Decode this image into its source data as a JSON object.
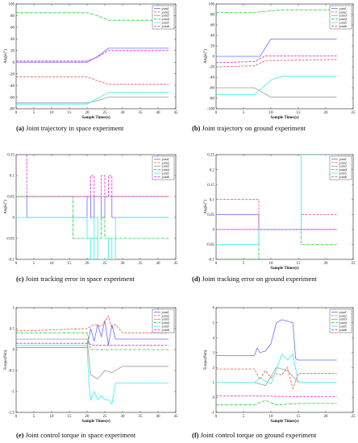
{
  "colors": {
    "joint1": "#6b6bff",
    "joint2": "#e8584a",
    "joint3": "#9a9a9a",
    "joint4": "#14c814",
    "joint5": "#33f0f0",
    "joint6": "#e020d8"
  },
  "chart_data": [
    {
      "type": "line",
      "caption": {
        "letter": "(a)",
        "text": " Joint trajectory in space experiment"
      },
      "xlabel": "Sample Times(s)",
      "ylabel": "Angle(°)",
      "xlim": [
        0,
        45
      ],
      "ylim": [
        -80,
        100
      ],
      "xticks": [
        0,
        5,
        10,
        15,
        20,
        25,
        30,
        35,
        40,
        45
      ],
      "yticks": [
        -80,
        -60,
        -40,
        -20,
        0,
        20,
        40,
        60,
        80,
        100
      ],
      "legend": {
        "position": "top-right",
        "entries": [
          "joint1",
          "joint2",
          "joint3",
          "joint4",
          "joint5",
          "joint6"
        ]
      },
      "series": [
        {
          "name": "joint1",
          "style": "solid",
          "x": [
            0,
            20,
            23,
            26,
            43
          ],
          "y": [
            0,
            0,
            10,
            24,
            24
          ]
        },
        {
          "name": "joint2",
          "style": "dashed",
          "x": [
            0,
            20,
            23,
            26,
            43
          ],
          "y": [
            -25,
            -25,
            -32,
            -38,
            -38
          ]
        },
        {
          "name": "joint3",
          "style": "solid",
          "x": [
            0,
            20,
            23,
            26,
            43
          ],
          "y": [
            -70,
            -70,
            -66,
            -60,
            -60
          ]
        },
        {
          "name": "joint4",
          "style": "dashdot",
          "x": [
            0,
            20,
            23,
            26,
            43
          ],
          "y": [
            85,
            85,
            80,
            72,
            72
          ]
        },
        {
          "name": "joint5",
          "style": "solid",
          "x": [
            0,
            20,
            23,
            26,
            43
          ],
          "y": [
            -72,
            -72,
            -62,
            -52,
            -52
          ]
        },
        {
          "name": "joint6",
          "style": "dashed",
          "x": [
            0,
            20,
            23,
            26,
            43
          ],
          "y": [
            2,
            2,
            9,
            20,
            20
          ]
        }
      ]
    },
    {
      "type": "line",
      "caption": {
        "letter": "(b)",
        "text": " Joint trajectory on ground experiment"
      },
      "xlabel": "Sample Times(s)",
      "ylabel": "Angle(°)",
      "xlim": [
        0,
        25
      ],
      "ylim": [
        -100,
        100
      ],
      "xticks": [
        0,
        5,
        10,
        15,
        20,
        25
      ],
      "yticks": [
        -100,
        -80,
        -60,
        -40,
        -20,
        0,
        20,
        40,
        60,
        80,
        100
      ],
      "legend": {
        "position": "top-right",
        "entries": [
          "joint1",
          "joint2",
          "joint3",
          "joint4",
          "joint5",
          "joint6"
        ]
      },
      "series": [
        {
          "name": "joint1",
          "style": "solid",
          "x": [
            0,
            8,
            10,
            22
          ],
          "y": [
            0,
            0,
            33,
            33
          ]
        },
        {
          "name": "joint2",
          "style": "dashed",
          "x": [
            0,
            7,
            9,
            22
          ],
          "y": [
            -20,
            -18,
            -8,
            -6
          ]
        },
        {
          "name": "joint3",
          "style": "solid",
          "x": [
            0,
            7,
            10,
            22
          ],
          "y": [
            -60,
            -60,
            -78,
            -78
          ]
        },
        {
          "name": "joint4",
          "style": "dashdot",
          "x": [
            0,
            7,
            12,
            22
          ],
          "y": [
            84,
            84,
            89,
            89
          ]
        },
        {
          "name": "joint5",
          "style": "solid",
          "x": [
            0,
            7,
            10,
            12,
            22
          ],
          "y": [
            -73,
            -73,
            -45,
            -38,
            -38
          ]
        },
        {
          "name": "joint6",
          "style": "dashed",
          "x": [
            0,
            7,
            9,
            22
          ],
          "y": [
            -12,
            -10,
            1,
            1
          ]
        }
      ]
    },
    {
      "type": "line",
      "caption": {
        "letter": "(c)",
        "text": " Joint tracking error in space experiment"
      },
      "xlabel": "",
      "ylabel": "Angle(°)",
      "xlim": [
        0,
        45
      ],
      "ylim": [
        -0.1,
        0.15
      ],
      "xticks": [
        0,
        5,
        10,
        15,
        20,
        25,
        30,
        35,
        40,
        45
      ],
      "yticks": [
        -0.1,
        -0.05,
        0,
        0.05,
        0.1,
        0.15
      ],
      "legend": {
        "position": "top-right",
        "entries": [
          "joint1",
          "joint2",
          "joint3",
          "joint4",
          "joint5",
          "joint6"
        ]
      },
      "series": [
        {
          "name": "joint1",
          "style": "solid",
          "x": [
            0,
            3,
            3,
            20,
            20,
            21,
            21,
            22,
            22,
            24,
            24,
            25,
            25,
            27,
            27,
            43
          ],
          "y": [
            0.05,
            0.05,
            0,
            0,
            0.05,
            0.05,
            0,
            0,
            0.05,
            0.05,
            0,
            0,
            0.05,
            0.05,
            0,
            0
          ]
        },
        {
          "name": "joint2",
          "style": "dashed",
          "x": [
            0,
            22,
            22,
            27,
            27,
            43
          ],
          "y": [
            0.05,
            0.05,
            0.05,
            0.05,
            0.05,
            0.05
          ]
        },
        {
          "name": "joint3",
          "style": "solid",
          "x": [
            0,
            20,
            20,
            43
          ],
          "y": [
            0.05,
            0.05,
            0.05,
            0.05
          ]
        },
        {
          "name": "joint4",
          "style": "dashdot",
          "x": [
            0,
            16,
            16,
            24,
            24,
            25,
            25,
            26,
            26,
            43
          ],
          "y": [
            0.05,
            0.05,
            -0.05,
            -0.05,
            0,
            0,
            -0.05,
            -0.05,
            -0.05,
            -0.05
          ]
        },
        {
          "name": "joint5",
          "style": "solid",
          "x": [
            0,
            20,
            20,
            21,
            21,
            22,
            22,
            23,
            23,
            26,
            26,
            27,
            27,
            28,
            28,
            43
          ],
          "y": [
            0,
            0,
            -0.05,
            -0.05,
            -0.1,
            -0.1,
            0,
            0,
            -0.1,
            -0.1,
            -0.05,
            -0.05,
            -0.1,
            -0.1,
            0,
            0
          ]
        },
        {
          "name": "joint6",
          "style": "dashed",
          "x": [
            0,
            3,
            3,
            21,
            21,
            22,
            22,
            24,
            24,
            25,
            25,
            26,
            26,
            27,
            27,
            43
          ],
          "y": [
            0.15,
            0.15,
            0.05,
            0.05,
            0.1,
            0.1,
            0.05,
            0.05,
            0.1,
            0.1,
            0.05,
            0.05,
            0.1,
            0.1,
            0.05,
            0.05
          ]
        }
      ]
    },
    {
      "type": "line",
      "caption": {
        "letter": "(d)",
        "text": " Joint tracking error on ground experiment"
      },
      "xlabel": "Sample Times(s)",
      "ylabel": "Angle(°)",
      "xlim": [
        0,
        25
      ],
      "ylim": [
        -0.1,
        0.25
      ],
      "xticks": [
        0,
        5,
        10,
        15,
        20,
        25
      ],
      "yticks": [
        -0.1,
        -0.05,
        0,
        0.05,
        0.1,
        0.15,
        0.2,
        0.25
      ],
      "legend": {
        "position": "top-right",
        "entries": [
          "joint1",
          "joint2",
          "joint3",
          "joint4",
          "joint5",
          "joint6"
        ]
      },
      "series": [
        {
          "name": "joint1",
          "style": "solid",
          "x": [
            0,
            7.8,
            7.8,
            22
          ],
          "y": [
            0.05,
            0.05,
            0,
            0
          ]
        },
        {
          "name": "joint2",
          "style": "dashed",
          "x": [
            0,
            7.8,
            7.8,
            15.5,
            15.5,
            22
          ],
          "y": [
            0.1,
            0.1,
            0,
            0,
            0.05,
            0.05
          ]
        },
        {
          "name": "joint3",
          "style": "solid",
          "x": [
            0,
            22
          ],
          "y": [
            0,
            0
          ]
        },
        {
          "name": "joint4",
          "style": "dashdot",
          "x": [
            0,
            7.8,
            7.8,
            15.5,
            15.5,
            22
          ],
          "y": [
            -0.1,
            -0.1,
            0,
            0,
            -0.05,
            -0.05
          ]
        },
        {
          "name": "joint5",
          "style": "solid",
          "x": [
            0,
            7.8,
            7.8,
            15.5,
            15.5,
            22
          ],
          "y": [
            -0.05,
            -0.05,
            0,
            0,
            0.25,
            0.25
          ]
        },
        {
          "name": "joint6",
          "style": "dashed",
          "x": [
            0,
            22
          ],
          "y": [
            0,
            0
          ]
        }
      ]
    },
    {
      "type": "line",
      "caption": {
        "letter": "(e)",
        "text": " Joint control torque in space experiment"
      },
      "xlabel": "Sample Times(s)",
      "ylabel": "Torque(Nm)",
      "xlim": [
        0,
        45
      ],
      "ylim": [
        -1.5,
        1
      ],
      "xticks": [
        0,
        5,
        10,
        15,
        20,
        25,
        30,
        35,
        40,
        45
      ],
      "yticks": [
        -1.5,
        -1,
        -0.5,
        0,
        0.5,
        1
      ],
      "legend": {
        "position": "top-right",
        "entries": [
          "joint1",
          "joint2",
          "joint3",
          "joint4",
          "joint5",
          "joint6"
        ]
      },
      "series": [
        {
          "name": "joint1",
          "style": "solid",
          "x": [
            0,
            3,
            20,
            21,
            22,
            23,
            24,
            25,
            26,
            27,
            28,
            30,
            43
          ],
          "y": [
            0.05,
            0.05,
            0.05,
            0.5,
            0.2,
            0.6,
            0.3,
            0.7,
            0.1,
            0.6,
            0.25,
            0.25,
            0.25
          ]
        },
        {
          "name": "joint2",
          "style": "dashed",
          "x": [
            0,
            3,
            20,
            22,
            24,
            26,
            27,
            28,
            30,
            43
          ],
          "y": [
            0.45,
            0.45,
            0.5,
            0.6,
            0.55,
            0.8,
            0.5,
            0.6,
            0.4,
            0.4
          ]
        },
        {
          "name": "joint3",
          "style": "solid",
          "x": [
            0,
            20,
            21,
            23,
            25,
            27,
            30,
            43
          ],
          "y": [
            0.25,
            0.25,
            -0.6,
            -0.7,
            -0.5,
            -0.55,
            -0.4,
            -0.4
          ]
        },
        {
          "name": "joint4",
          "style": "dashdot",
          "x": [
            0,
            3,
            20,
            21,
            22,
            43
          ],
          "y": [
            0.4,
            0.4,
            0.4,
            0,
            0,
            0
          ]
        },
        {
          "name": "joint5",
          "style": "solid",
          "x": [
            0,
            3,
            20,
            20.5,
            21,
            22,
            23,
            24,
            25,
            26,
            27,
            28,
            30,
            43
          ],
          "y": [
            0.1,
            0.1,
            0.1,
            -0.8,
            -1.2,
            -1.0,
            -1.2,
            -1.1,
            -1.2,
            -1.2,
            -1.3,
            -0.8,
            -0.8,
            -0.8
          ]
        },
        {
          "name": "joint6",
          "style": "dashed",
          "x": [
            0,
            3,
            20,
            22,
            25,
            27,
            30,
            43
          ],
          "y": [
            0.15,
            0.15,
            0.15,
            0.1,
            0.1,
            0.1,
            0.1,
            0.1
          ]
        }
      ]
    },
    {
      "type": "line",
      "caption": {
        "letter": "(f)",
        "text": " Joint control torque on ground experiment"
      },
      "xlabel": "Sample Times(s)",
      "ylabel": "Torque(Nm)",
      "xlim": [
        0,
        25
      ],
      "ylim": [
        -1,
        6
      ],
      "xticks": [
        0,
        5,
        10,
        15,
        20,
        25
      ],
      "yticks": [
        -1,
        0,
        1,
        2,
        3,
        4,
        5,
        6
      ],
      "legend": {
        "position": "top-right",
        "entries": [
          "joint1",
          "joint2",
          "joint3",
          "joint4",
          "joint5",
          "joint6"
        ]
      },
      "series": [
        {
          "name": "joint1",
          "style": "solid",
          "x": [
            0,
            7,
            7.5,
            8,
            9,
            10,
            11,
            12,
            13,
            14,
            14.5,
            15,
            22
          ],
          "y": [
            2.8,
            2.8,
            3.3,
            3.0,
            3.1,
            3.6,
            5.0,
            5.2,
            5.1,
            5.0,
            2.6,
            2.5,
            2.5
          ]
        },
        {
          "name": "joint2",
          "style": "dashed",
          "x": [
            0,
            7,
            8,
            9,
            10,
            11,
            12,
            13,
            14,
            15,
            22
          ],
          "y": [
            1.9,
            1.9,
            1.2,
            1.8,
            1.3,
            1.6,
            1.5,
            2.0,
            0.6,
            1.6,
            1.6
          ]
        },
        {
          "name": "joint3",
          "style": "solid",
          "x": [
            0,
            7,
            9,
            11,
            13,
            15,
            22
          ],
          "y": [
            1.0,
            1.0,
            0.8,
            2.0,
            1.8,
            1.0,
            1.0
          ]
        },
        {
          "name": "joint4",
          "style": "dashdot",
          "x": [
            0,
            7,
            9,
            11,
            15,
            22
          ],
          "y": [
            -0.5,
            -0.5,
            -0.2,
            -0.5,
            -0.4,
            -0.4
          ]
        },
        {
          "name": "joint5",
          "style": "solid",
          "x": [
            0,
            7,
            8,
            10,
            12,
            13,
            14,
            15,
            22
          ],
          "y": [
            1.0,
            1.0,
            1.3,
            0.9,
            2.9,
            2.5,
            2.9,
            1.0,
            1.0
          ]
        },
        {
          "name": "joint6",
          "style": "dashed",
          "x": [
            0,
            7,
            15,
            22
          ],
          "y": [
            0.1,
            0.1,
            0.05,
            0.05
          ]
        }
      ]
    }
  ]
}
